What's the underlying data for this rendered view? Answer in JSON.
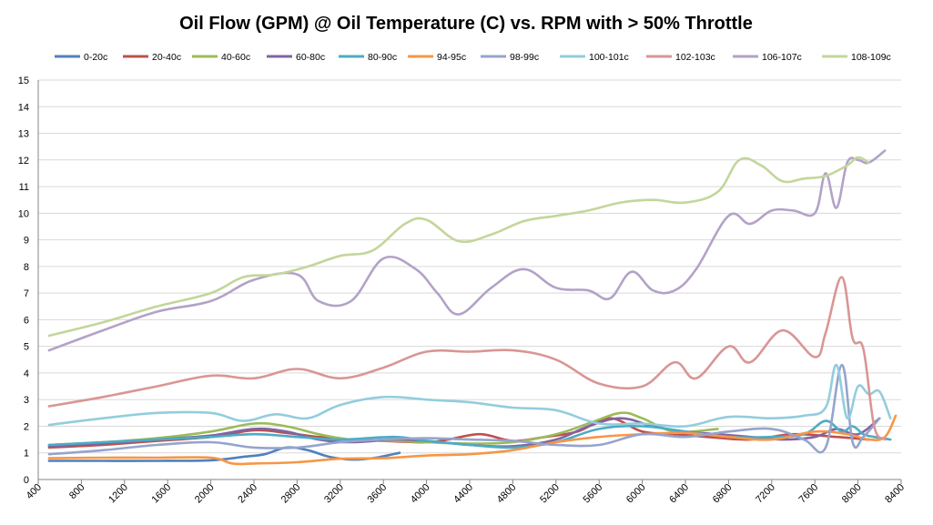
{
  "chart_data": {
    "type": "line",
    "title": "Oil Flow (GPM) @ Oil Temperature (C) vs. RPM with > 50% Throttle",
    "xlabel": "",
    "ylabel": "",
    "xlim": [
      400,
      8400
    ],
    "ylim": [
      0,
      15
    ],
    "x_ticks": [
      400,
      800,
      1200,
      1600,
      2000,
      2400,
      2800,
      3200,
      3600,
      4000,
      4400,
      4800,
      5200,
      5600,
      6000,
      6400,
      6800,
      7200,
      7600,
      8000,
      8400
    ],
    "y_ticks": [
      0,
      1,
      2,
      3,
      4,
      5,
      6,
      7,
      8,
      9,
      10,
      11,
      12,
      13,
      14,
      15
    ],
    "grid": true,
    "legend_position": "top",
    "series": [
      {
        "name": "0-20c",
        "color": "#4f81bd",
        "x": [
          500,
          1000,
          1500,
          2000,
          2300,
          2500,
          2700,
          2900,
          3100,
          3300,
          3500,
          3750
        ],
        "y": [
          0.7,
          0.7,
          0.7,
          0.72,
          0.85,
          0.95,
          1.2,
          1.1,
          0.85,
          0.75,
          0.8,
          1.0
        ]
      },
      {
        "name": "20-40c",
        "color": "#c0504d",
        "x": [
          500,
          1000,
          1500,
          2000,
          2400,
          2700,
          3000,
          3300,
          3600,
          4000,
          4200,
          4500,
          4800,
          5100,
          5400,
          5700,
          6000,
          6300,
          6600,
          7000,
          7400,
          7800,
          8100
        ],
        "y": [
          1.2,
          1.3,
          1.45,
          1.6,
          1.85,
          1.75,
          1.6,
          1.5,
          1.45,
          1.4,
          1.5,
          1.7,
          1.45,
          1.6,
          1.8,
          2.3,
          1.8,
          1.7,
          1.6,
          1.5,
          1.7,
          1.6,
          1.5
        ]
      },
      {
        "name": "40-60c",
        "color": "#9bbb59",
        "x": [
          500,
          1000,
          1500,
          2000,
          2400,
          2700,
          3000,
          3300,
          3700,
          4000,
          4400,
          4800,
          5200,
          5500,
          5800,
          6000,
          6300,
          6700
        ],
        "y": [
          1.3,
          1.4,
          1.55,
          1.8,
          2.1,
          2.0,
          1.7,
          1.5,
          1.45,
          1.4,
          1.35,
          1.4,
          1.7,
          2.1,
          2.5,
          2.3,
          1.8,
          1.9
        ]
      },
      {
        "name": "60-80c",
        "color": "#8064a2",
        "x": [
          500,
          1000,
          1500,
          2000,
          2400,
          2700,
          3000,
          3300,
          3700,
          4000,
          4400,
          4800,
          5200,
          5500,
          5800,
          6100,
          6400,
          6700,
          7000,
          7300,
          7600,
          7800,
          8000,
          8200
        ],
        "y": [
          1.25,
          1.35,
          1.5,
          1.65,
          1.9,
          1.8,
          1.5,
          1.4,
          1.5,
          1.45,
          1.3,
          1.25,
          1.5,
          2.0,
          2.3,
          2.0,
          1.8,
          1.7,
          1.6,
          1.5,
          1.6,
          1.9,
          1.7,
          2.3
        ]
      },
      {
        "name": "80-90c",
        "color": "#4bacc6",
        "x": [
          500,
          1000,
          1500,
          2000,
          2400,
          2800,
          3200,
          3700,
          4000,
          4400,
          4800,
          5200,
          5600,
          6000,
          6400,
          6800,
          7200,
          7500,
          7700,
          7850,
          7950,
          8050,
          8150,
          8300
        ],
        "y": [
          1.3,
          1.4,
          1.5,
          1.6,
          1.7,
          1.6,
          1.5,
          1.6,
          1.45,
          1.3,
          1.2,
          1.4,
          1.9,
          2.0,
          1.8,
          1.6,
          1.6,
          1.7,
          2.2,
          1.8,
          2.0,
          1.7,
          1.6,
          1.5
        ]
      },
      {
        "name": "94-95c",
        "color": "#f79646",
        "x": [
          500,
          1000,
          1500,
          2000,
          2200,
          2400,
          2800,
          3200,
          3600,
          4000,
          4400,
          4800,
          5200,
          5600,
          6000,
          6400,
          6800,
          7200,
          7600,
          7900,
          8100,
          8250,
          8350
        ],
        "y": [
          0.8,
          0.82,
          0.82,
          0.82,
          0.6,
          0.6,
          0.65,
          0.78,
          0.8,
          0.9,
          0.95,
          1.1,
          1.4,
          1.6,
          1.7,
          1.75,
          1.6,
          1.5,
          1.8,
          1.7,
          1.5,
          1.6,
          2.4
        ]
      },
      {
        "name": "98-99c",
        "color": "#95a4cd",
        "x": [
          500,
          1000,
          1500,
          2000,
          2400,
          2800,
          3200,
          3600,
          4000,
          4400,
          4800,
          5200,
          5600,
          6000,
          6400,
          6800,
          7200,
          7500,
          7700,
          7850,
          7950,
          8050,
          8200
        ],
        "y": [
          0.95,
          1.1,
          1.3,
          1.4,
          1.2,
          1.2,
          1.4,
          1.5,
          1.55,
          1.5,
          1.45,
          1.3,
          1.3,
          1.7,
          1.6,
          1.8,
          1.9,
          1.5,
          1.2,
          4.3,
          1.4,
          1.6,
          2.3
        ]
      },
      {
        "name": "100-101c",
        "color": "#93cddd",
        "x": [
          500,
          1000,
          1500,
          2000,
          2300,
          2600,
          2900,
          3200,
          3600,
          4000,
          4400,
          4800,
          5200,
          5600,
          6000,
          6400,
          6800,
          7200,
          7500,
          7700,
          7800,
          7900,
          8000,
          8100,
          8200,
          8300
        ],
        "y": [
          2.05,
          2.3,
          2.5,
          2.5,
          2.2,
          2.45,
          2.3,
          2.8,
          3.1,
          3.0,
          2.9,
          2.7,
          2.6,
          2.1,
          2.1,
          2.0,
          2.35,
          2.3,
          2.4,
          2.7,
          4.3,
          2.3,
          3.5,
          3.2,
          3.3,
          2.3
        ]
      },
      {
        "name": "102-103c",
        "color": "#d99694",
        "x": [
          500,
          1000,
          1500,
          2000,
          2400,
          2800,
          3200,
          3600,
          4000,
          4400,
          4800,
          5200,
          5600,
          6000,
          6300,
          6500,
          6800,
          7000,
          7300,
          7600,
          7700,
          7850,
          7950,
          8050,
          8150,
          8250
        ],
        "y": [
          2.75,
          3.1,
          3.5,
          3.9,
          3.8,
          4.15,
          3.8,
          4.2,
          4.8,
          4.8,
          4.85,
          4.5,
          3.6,
          3.5,
          4.4,
          3.8,
          5.0,
          4.4,
          5.6,
          4.6,
          5.5,
          7.6,
          5.3,
          4.9,
          2.0,
          1.5
        ]
      },
      {
        "name": "106-107c",
        "color": "#b3a2c7",
        "x": [
          500,
          1000,
          1500,
          2000,
          2400,
          2800,
          3000,
          3300,
          3600,
          3900,
          4100,
          4300,
          4600,
          4900,
          5200,
          5500,
          5700,
          5900,
          6100,
          6300,
          6500,
          6800,
          7000,
          7200,
          7400,
          7600,
          7700,
          7800,
          7900,
          8000,
          8100,
          8250
        ],
        "y": [
          4.85,
          5.6,
          6.3,
          6.7,
          7.5,
          7.7,
          6.7,
          6.7,
          8.3,
          7.9,
          7.0,
          6.2,
          7.2,
          7.9,
          7.2,
          7.1,
          6.8,
          7.8,
          7.1,
          7.1,
          7.9,
          9.9,
          9.6,
          10.1,
          10.1,
          10.0,
          11.5,
          10.2,
          11.9,
          12.0,
          11.9,
          12.35
        ]
      },
      {
        "name": "108-109c",
        "color": "#c3d69b",
        "x": [
          500,
          1000,
          1500,
          2000,
          2300,
          2600,
          2900,
          3200,
          3500,
          3800,
          4000,
          4300,
          4600,
          4900,
          5200,
          5500,
          5800,
          6100,
          6400,
          6700,
          6900,
          7100,
          7300,
          7500,
          7700,
          7900,
          8000,
          8100
        ],
        "y": [
          5.4,
          5.9,
          6.5,
          7.0,
          7.6,
          7.7,
          8.0,
          8.4,
          8.6,
          9.6,
          9.75,
          8.95,
          9.2,
          9.7,
          9.9,
          10.1,
          10.4,
          10.5,
          10.4,
          10.8,
          12.0,
          11.8,
          11.2,
          11.3,
          11.4,
          11.8,
          12.1,
          11.9
        ]
      }
    ]
  }
}
